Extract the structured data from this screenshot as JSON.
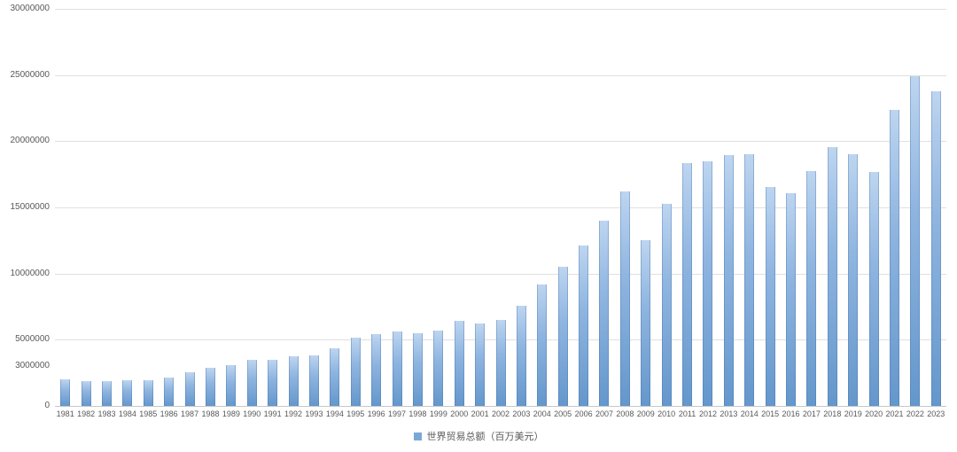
{
  "chart_data": {
    "type": "bar",
    "title": "",
    "legend": "世界贸易总额（百万美元）",
    "legend_position": "bottom-center",
    "xlabel": "",
    "ylabel": "",
    "categories": [
      "1981",
      "1982",
      "1983",
      "1984",
      "1985",
      "1986",
      "1987",
      "1988",
      "1989",
      "1990",
      "1991",
      "1992",
      "1993",
      "1994",
      "1995",
      "1996",
      "1997",
      "1998",
      "1999",
      "2000",
      "2001",
      "2002",
      "2003",
      "2004",
      "2005",
      "2006",
      "2007",
      "2008",
      "2009",
      "2010",
      "2011",
      "2012",
      "2013",
      "2014",
      "2015",
      "2016",
      "2017",
      "2018",
      "2019",
      "2020",
      "2021",
      "2022",
      "2023"
    ],
    "values": [
      2000000,
      1900000,
      1850000,
      1950000,
      1950000,
      2150000,
      2550000,
      2900000,
      3100000,
      3450000,
      3500000,
      3750000,
      3800000,
      4350000,
      5150000,
      5400000,
      5600000,
      5500000,
      5700000,
      6450000,
      6200000,
      6500000,
      7600000,
      9200000,
      10500000,
      12100000,
      14000000,
      16200000,
      12550000,
      15300000,
      18350000,
      18500000,
      18950000,
      19000000,
      16550000,
      16050000,
      17750000,
      19550000,
      19000000,
      17650000,
      22350000,
      24900000,
      23800000
    ],
    "ylim": [
      0,
      30000000
    ],
    "y_tick_values": [
      0,
      3000000,
      5000000,
      10000000,
      15000000,
      20000000,
      25000000,
      30000000
    ],
    "y_tick_labels": [
      "0",
      "3000000",
      "5000000",
      "10000000",
      "15000000",
      "20000000",
      "25000000",
      "30000000"
    ],
    "gridline_values": [
      5000000,
      10000000,
      15000000,
      20000000,
      25000000,
      30000000
    ],
    "grid": true,
    "colors": {
      "bar_top": "#bdd5f0",
      "bar_bottom": "#6497cc",
      "legend_marker": "#7ba7d7",
      "gridline": "#e0e0e0",
      "axis_text": "#595959"
    }
  }
}
